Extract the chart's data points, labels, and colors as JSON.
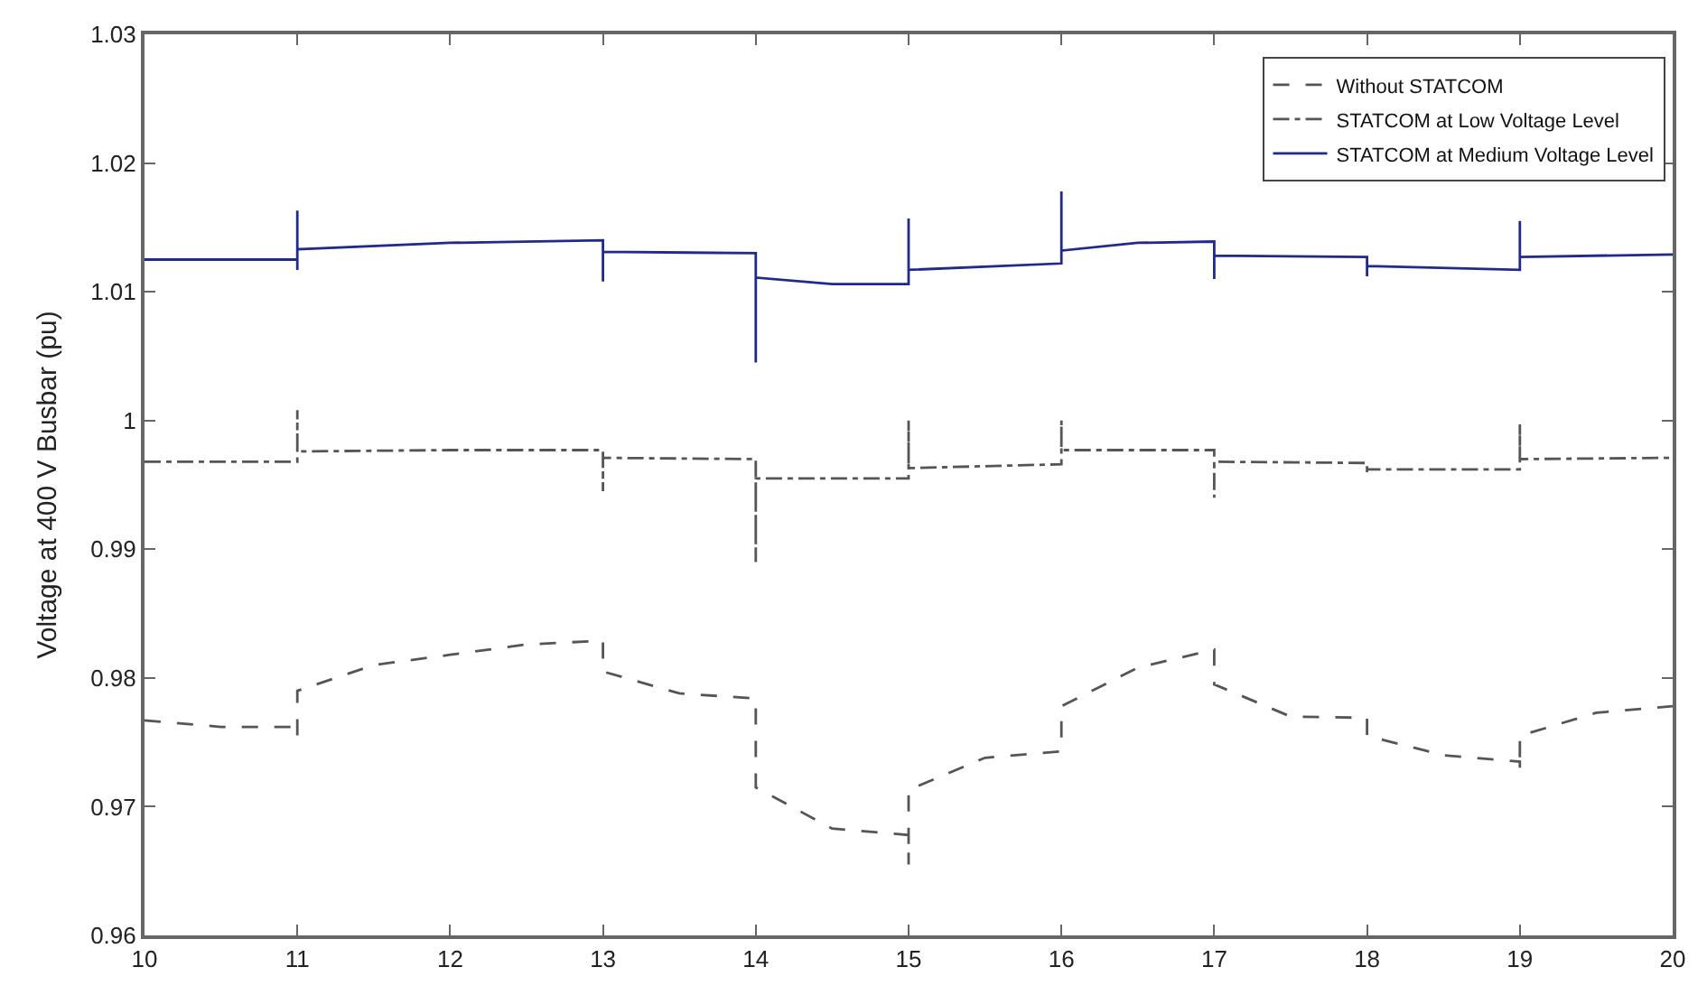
{
  "chart_data": {
    "type": "line",
    "ylabel": "Voltage at 400 V Busbar (pu)",
    "xlim": [
      10,
      20
    ],
    "ylim": [
      0.96,
      1.03
    ],
    "xticks": [
      10,
      11,
      12,
      13,
      14,
      15,
      16,
      17,
      18,
      19,
      20
    ],
    "yticks": [
      0.96,
      0.97,
      0.98,
      0.99,
      1,
      1.01,
      1.02,
      1.03
    ],
    "legend": "top right",
    "marker": "none",
    "series": [
      {
        "name": "Without STATCOM",
        "color": "#555555",
        "line_style": "dashed",
        "x": [
          10,
          10.5,
          11,
          11,
          11,
          11.5,
          12,
          12.5,
          13,
          13,
          13.5,
          14,
          14,
          14,
          14.5,
          15,
          15,
          15,
          15.5,
          16,
          16,
          16.5,
          17,
          17,
          17,
          17.5,
          18,
          18,
          18.5,
          19,
          19,
          19,
          19.5,
          20
        ],
        "values": [
          0.9767,
          0.9762,
          0.9762,
          0.9755,
          0.979,
          0.981,
          0.9818,
          0.9826,
          0.9829,
          0.9805,
          0.9788,
          0.9784,
          0.9738,
          0.9715,
          0.9683,
          0.9678,
          0.9655,
          0.9713,
          0.9738,
          0.9743,
          0.9778,
          0.9808,
          0.9822,
          0.9818,
          0.9795,
          0.977,
          0.9769,
          0.9755,
          0.974,
          0.9735,
          0.9728,
          0.9755,
          0.9773,
          0.9778
        ]
      },
      {
        "name": "STATCOM at Low Voltage Level",
        "color": "#555555",
        "line_style": "dashdot",
        "x": [
          10,
          11,
          11,
          11,
          12,
          13,
          13,
          13,
          14,
          14,
          14,
          15,
          15,
          15,
          16,
          16,
          16,
          17,
          17,
          17,
          18,
          18,
          18,
          19,
          19,
          19,
          20
        ],
        "values": [
          0.9968,
          0.9968,
          1.0008,
          0.9976,
          0.9977,
          0.9977,
          0.9945,
          0.9971,
          0.997,
          0.989,
          0.9955,
          0.9955,
          1.0,
          0.9963,
          0.9966,
          1.0,
          0.9977,
          0.9977,
          0.994,
          0.9968,
          0.9967,
          0.9958,
          0.9962,
          0.9962,
          0.9997,
          0.997,
          0.9971
        ]
      },
      {
        "name": "STATCOM at Medium Voltage Level",
        "color": "#1f2a8c",
        "line_style": "solid",
        "x": [
          10,
          11,
          11,
          11,
          11,
          12,
          13,
          13,
          13,
          14,
          14,
          14,
          14.5,
          15,
          15,
          15,
          16,
          16,
          16,
          16.5,
          17,
          17,
          17,
          18,
          18,
          18,
          19,
          19,
          19,
          20
        ],
        "values": [
          1.0125,
          1.0125,
          1.0163,
          1.0117,
          1.0133,
          1.0138,
          1.014,
          1.0108,
          1.0131,
          1.013,
          1.0045,
          1.0111,
          1.0106,
          1.0106,
          1.0157,
          1.0117,
          1.0122,
          1.0178,
          1.0132,
          1.0138,
          1.0139,
          1.011,
          1.0128,
          1.0127,
          1.0112,
          1.012,
          1.0117,
          1.0155,
          1.0127,
          1.0129
        ]
      }
    ]
  }
}
